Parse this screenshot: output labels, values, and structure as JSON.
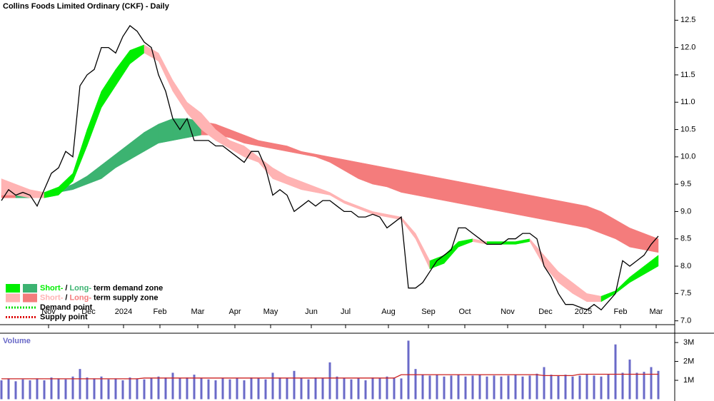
{
  "chart_data": {
    "type": "line",
    "title": "Collins Foods Limited Ordinary (CKF) - Daily",
    "x": [
      0,
      1,
      2,
      3,
      4,
      5,
      6,
      7,
      8,
      9,
      10,
      11,
      12,
      13,
      14,
      15,
      16,
      17,
      18,
      19,
      20,
      21,
      22,
      23,
      24,
      25,
      26,
      27,
      28,
      29,
      30,
      31,
      32,
      33,
      34,
      35,
      36,
      37,
      38,
      39,
      40,
      41,
      42,
      43,
      44,
      45,
      46,
      47,
      48,
      49,
      50,
      51,
      52,
      53,
      54,
      55,
      56,
      57,
      58,
      59,
      60,
      61,
      62,
      63,
      64,
      65,
      66,
      67,
      68,
      69,
      70,
      71,
      72,
      73,
      74,
      75,
      76,
      77,
      78,
      79,
      80,
      81,
      82,
      83,
      84,
      85,
      86,
      87,
      88,
      89,
      90,
      91,
      92
    ],
    "values": [
      9.2,
      9.4,
      9.3,
      9.35,
      9.3,
      9.1,
      9.4,
      9.7,
      9.8,
      10.1,
      10.0,
      11.3,
      11.5,
      11.6,
      12.0,
      12.0,
      11.9,
      12.2,
      12.4,
      12.3,
      12.1,
      12.0,
      11.5,
      11.2,
      10.7,
      10.5,
      10.7,
      10.3,
      10.3,
      10.3,
      10.2,
      10.2,
      10.1,
      10.0,
      9.9,
      10.1,
      10.1,
      9.8,
      9.3,
      9.4,
      9.3,
      9.0,
      9.1,
      9.2,
      9.1,
      9.2,
      9.2,
      9.1,
      9.0,
      9.0,
      8.9,
      8.9,
      8.95,
      8.9,
      8.7,
      8.8,
      8.9,
      7.6,
      7.6,
      7.7,
      7.9,
      8.1,
      8.2,
      8.3,
      8.7,
      8.7,
      8.6,
      8.5,
      8.4,
      8.4,
      8.4,
      8.5,
      8.5,
      8.6,
      8.6,
      8.5,
      8.0,
      7.8,
      7.5,
      7.3,
      7.3,
      7.25,
      7.2,
      7.3,
      7.2,
      7.35,
      7.5,
      8.1,
      8.0,
      8.1,
      8.2,
      8.4,
      8.55
    ],
    "color": "#000000",
    "xlim": [
      -0.2,
      94.3
    ],
    "xticks": [
      {
        "value": 6.6,
        "label": "Nov"
      },
      {
        "value": 12.2,
        "label": "Dec"
      },
      {
        "value": 17.1,
        "label": "2024"
      },
      {
        "value": 22.2,
        "label": "Feb"
      },
      {
        "value": 27.5,
        "label": "Mar"
      },
      {
        "value": 32.7,
        "label": "Apr"
      },
      {
        "value": 37.7,
        "label": "May"
      },
      {
        "value": 43.4,
        "label": "Jun"
      },
      {
        "value": 48.2,
        "label": "Jul"
      },
      {
        "value": 54.2,
        "label": "Aug"
      },
      {
        "value": 59.8,
        "label": "Sep"
      },
      {
        "value": 64.9,
        "label": "Oct"
      },
      {
        "value": 70.9,
        "label": "Nov"
      },
      {
        "value": 76.2,
        "label": "Dec"
      },
      {
        "value": 81.5,
        "label": "2025"
      },
      {
        "value": 86.7,
        "label": "Feb"
      },
      {
        "value": 91.7,
        "label": "Mar"
      }
    ],
    "ylim": [
      6.93,
      12.87
    ],
    "yticks": [
      12.5,
      {
        "value": 12,
        "label": "12.0"
      },
      11.5,
      {
        "value": 11,
        "label": "11.0"
      },
      10.5,
      {
        "value": 10,
        "label": "10.0"
      },
      9.5,
      {
        "value": 9,
        "label": "9.0"
      },
      8.5,
      {
        "value": 8,
        "label": "8.0"
      },
      7.5,
      {
        "value": 7,
        "label": "7.0"
      }
    ],
    "band_x": [
      0,
      2,
      4,
      6,
      8,
      10,
      12,
      14,
      16,
      18,
      20,
      22,
      24,
      26,
      28,
      30,
      32,
      34,
      36,
      38,
      40,
      42,
      44,
      46,
      48,
      50,
      52,
      54,
      56,
      58,
      60,
      62,
      64,
      66,
      68,
      70,
      72,
      74,
      76,
      78,
      80,
      82,
      84,
      86,
      88,
      90,
      92
    ],
    "short_zone": {
      "upper": [
        9.6,
        9.5,
        9.4,
        9.35,
        9.45,
        9.7,
        10.5,
        11.2,
        11.6,
        11.95,
        12.05,
        11.9,
        11.4,
        11.0,
        10.8,
        10.5,
        10.3,
        10.2,
        10.0,
        9.8,
        9.65,
        9.55,
        9.45,
        9.35,
        9.2,
        9.1,
        9.0,
        8.95,
        8.9,
        8.6,
        8.1,
        8.2,
        8.45,
        8.5,
        8.45,
        8.45,
        8.45,
        8.5,
        8.2,
        7.9,
        7.7,
        7.5,
        7.45,
        7.55,
        7.8,
        8.0,
        8.2
      ],
      "lower": [
        9.3,
        9.3,
        9.25,
        9.25,
        9.3,
        9.55,
        10.2,
        10.9,
        11.3,
        11.7,
        11.9,
        11.75,
        11.2,
        10.8,
        10.5,
        10.3,
        10.15,
        10.0,
        9.9,
        9.6,
        9.5,
        9.4,
        9.35,
        9.3,
        9.15,
        9.05,
        8.95,
        8.9,
        8.85,
        8.5,
        7.95,
        8.05,
        8.35,
        8.45,
        8.4,
        8.4,
        8.4,
        8.45,
        8.0,
        7.7,
        7.5,
        7.35,
        7.35,
        7.5,
        7.7,
        7.85,
        8.0
      ]
    },
    "long_zone": {
      "upper": [
        9.35,
        9.3,
        9.3,
        9.35,
        9.4,
        9.5,
        9.65,
        9.85,
        10.05,
        10.25,
        10.45,
        10.6,
        10.7,
        10.7,
        10.65,
        10.6,
        10.5,
        10.4,
        10.3,
        10.25,
        10.2,
        10.1,
        10.05,
        10.0,
        9.95,
        9.9,
        9.85,
        9.8,
        9.75,
        9.7,
        9.65,
        9.6,
        9.55,
        9.5,
        9.45,
        9.4,
        9.35,
        9.3,
        9.25,
        9.2,
        9.15,
        9.1,
        9.0,
        8.85,
        8.7,
        8.6,
        8.5
      ],
      "lower": [
        9.25,
        9.25,
        9.25,
        9.3,
        9.35,
        9.4,
        9.5,
        9.6,
        9.8,
        9.95,
        10.1,
        10.25,
        10.3,
        10.35,
        10.4,
        10.4,
        10.35,
        10.25,
        10.2,
        10.15,
        10.1,
        10.05,
        10.0,
        9.9,
        9.75,
        9.6,
        9.5,
        9.45,
        9.35,
        9.3,
        9.25,
        9.2,
        9.15,
        9.1,
        9.05,
        9.0,
        8.95,
        8.9,
        8.85,
        8.8,
        8.75,
        8.7,
        8.6,
        8.5,
        8.35,
        8.3,
        8.25
      ]
    },
    "zone_colors": {
      "short_demand": "#00ee00",
      "long_demand": "#3cb371",
      "short_supply": "#ffb3b3",
      "long_supply": "#f47c7c"
    },
    "legend": [
      {
        "swatches": [
          "#00ee00",
          "#3cb371"
        ],
        "parts": [
          {
            "text": "Short-",
            "color": "#00ee00"
          },
          {
            "text": "/",
            "color": "#000000"
          },
          {
            "text": "Long-",
            "color": "#3cb371"
          },
          {
            "text": "term demand zone",
            "color": "#000000"
          }
        ]
      },
      {
        "swatches": [
          "#ffb3b3",
          "#f47c7c"
        ],
        "parts": [
          {
            "text": "Short-",
            "color": "#ffb3b3"
          },
          {
            "text": "/",
            "color": "#000000"
          },
          {
            "text": "Long-",
            "color": "#f47c7c"
          },
          {
            "text": "term supply zone",
            "color": "#000000"
          }
        ]
      },
      {
        "line_color": "#00dd00",
        "parts": [
          {
            "text": "Demand point",
            "color": "#000000"
          }
        ]
      },
      {
        "line_color": "#dd0000",
        "parts": [
          {
            "text": "Supply point",
            "color": "#000000"
          }
        ]
      }
    ],
    "volume": {
      "label": "Volume",
      "color": "#6a6ac8",
      "ma_color": "#cc2222",
      "values": [
        1000000,
        1100000,
        950000,
        1050000,
        1000000,
        1100000,
        1000000,
        1150000,
        1100000,
        1050000,
        1200000,
        1600000,
        1150000,
        1100000,
        1200000,
        1050000,
        1100000,
        1000000,
        1150000,
        1100000,
        1050000,
        1100000,
        1200000,
        1150000,
        1400000,
        1100000,
        1150000,
        1300000,
        1100000,
        1050000,
        1000000,
        1100000,
        1050000,
        1100000,
        1000000,
        1150000,
        1100000,
        1050000,
        1400000,
        1150000,
        1100000,
        1500000,
        1100000,
        1050000,
        1150000,
        1100000,
        1950000,
        1200000,
        1100000,
        1050000,
        1100000,
        1000000,
        1150000,
        1100000,
        1200000,
        1150000,
        1100000,
        3100000,
        1600000,
        1300000,
        1250000,
        1300000,
        1200000,
        1250000,
        1300000,
        1200000,
        1250000,
        1300000,
        1200000,
        1250000,
        1200000,
        1250000,
        1300000,
        1200000,
        1250000,
        1350000,
        1700000,
        1300000,
        1250000,
        1300000,
        1200000,
        1250000,
        1300000,
        1250000,
        1200000,
        1300000,
        2900000,
        1400000,
        2100000,
        1400000,
        1450000,
        1700000,
        1500000
      ],
      "ma": [
        1080000,
        1080000,
        1080000,
        1080000,
        1080000,
        1080000,
        1080000,
        1080000,
        1080000,
        1080000,
        1080000,
        1080000,
        1080000,
        1080000,
        1080000,
        1080000,
        1080000,
        1080000,
        1080000,
        1080000,
        1120000,
        1120000,
        1120000,
        1120000,
        1120000,
        1120000,
        1120000,
        1120000,
        1120000,
        1120000,
        1120000,
        1120000,
        1120000,
        1120000,
        1120000,
        1120000,
        1120000,
        1120000,
        1120000,
        1120000,
        1120000,
        1120000,
        1120000,
        1120000,
        1120000,
        1120000,
        1120000,
        1120000,
        1120000,
        1120000,
        1120000,
        1120000,
        1120000,
        1120000,
        1120000,
        1120000,
        1300000,
        1300000,
        1300000,
        1300000,
        1300000,
        1300000,
        1300000,
        1300000,
        1300000,
        1300000,
        1300000,
        1300000,
        1300000,
        1300000,
        1300000,
        1300000,
        1300000,
        1300000,
        1300000,
        1300000,
        1250000,
        1250000,
        1250000,
        1250000,
        1250000,
        1320000,
        1320000,
        1320000,
        1320000,
        1320000,
        1320000,
        1320000,
        1320000,
        1320000,
        1320000,
        1320000,
        1320000
      ],
      "ylim": [
        0,
        3380000
      ],
      "yticks": [
        {
          "value": 3000000,
          "label": "3M"
        },
        {
          "value": 2000000,
          "label": "2M"
        },
        {
          "value": 1000000,
          "label": "1M"
        }
      ]
    }
  }
}
